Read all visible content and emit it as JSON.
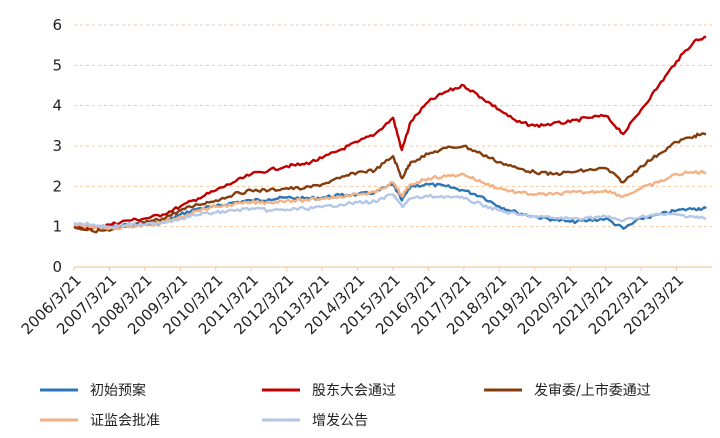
{
  "chart_data": {
    "type": "line",
    "x_tick_labels": [
      "2006/3/21",
      "2007/3/21",
      "2008/3/21",
      "2009/3/21",
      "2010/3/21",
      "2011/3/21",
      "2012/3/21",
      "2013/3/21",
      "2014/3/21",
      "2015/3/21",
      "2016/3/21",
      "2017/3/21",
      "2018/3/21",
      "2019/3/21",
      "2020/3/21",
      "2021/3/21",
      "2022/3/21",
      "2023/3/21"
    ],
    "y_ticks": [
      "0",
      "1",
      "2",
      "3",
      "4",
      "5",
      "6"
    ],
    "ylim": [
      0,
      6
    ],
    "x_range": [
      "2006/3/21",
      "2024/3/21"
    ],
    "grid": "horizontal dashed",
    "legend_position": "bottom",
    "x": [
      "2006/3/21",
      "2006/9/21",
      "2007/3/21",
      "2007/9/21",
      "2008/3/21",
      "2008/9/21",
      "2009/3/21",
      "2009/9/21",
      "2010/3/21",
      "2010/9/21",
      "2011/3/21",
      "2011/9/21",
      "2012/3/21",
      "2012/9/21",
      "2013/3/21",
      "2013/9/21",
      "2014/3/21",
      "2014/9/21",
      "2015/3/21",
      "2015/6/21",
      "2015/9/21",
      "2016/3/21",
      "2016/9/21",
      "2017/3/21",
      "2017/9/21",
      "2018/3/21",
      "2018/9/21",
      "2019/3/21",
      "2019/9/21",
      "2020/3/21",
      "2020/9/21",
      "2021/3/21",
      "2021/9/21",
      "2022/3/21",
      "2022/9/21",
      "2023/3/21",
      "2023/9/21",
      "2024/1/21"
    ],
    "series": [
      {
        "name": "初始预案",
        "color": "#2e75b6",
        "values": [
          1.05,
          1.0,
          1.0,
          1.05,
          1.05,
          1.1,
          1.3,
          1.45,
          1.5,
          1.6,
          1.65,
          1.68,
          1.72,
          1.7,
          1.72,
          1.78,
          1.8,
          1.85,
          2.05,
          1.65,
          2.0,
          2.05,
          2.0,
          1.9,
          1.75,
          1.5,
          1.35,
          1.25,
          1.18,
          1.12,
          1.15,
          1.2,
          0.95,
          1.2,
          1.3,
          1.4,
          1.45,
          1.45
        ]
      },
      {
        "name": "股东大会通过",
        "color": "#c00000",
        "values": [
          1.0,
          0.95,
          1.05,
          1.15,
          1.2,
          1.3,
          1.5,
          1.7,
          1.9,
          2.1,
          2.3,
          2.4,
          2.5,
          2.55,
          2.7,
          2.9,
          3.1,
          3.3,
          3.7,
          2.9,
          3.6,
          4.1,
          4.35,
          4.5,
          4.2,
          3.9,
          3.6,
          3.5,
          3.55,
          3.6,
          3.7,
          3.75,
          3.3,
          3.9,
          4.5,
          5.1,
          5.6,
          5.7
        ]
      },
      {
        "name": "发审委/上市委通过",
        "color": "#843c0c",
        "values": [
          1.0,
          0.9,
          0.9,
          1.0,
          1.1,
          1.2,
          1.4,
          1.55,
          1.65,
          1.8,
          1.9,
          1.9,
          1.95,
          1.95,
          2.05,
          2.2,
          2.35,
          2.4,
          2.75,
          2.2,
          2.6,
          2.8,
          2.95,
          3.0,
          2.8,
          2.6,
          2.45,
          2.35,
          2.3,
          2.35,
          2.4,
          2.45,
          2.1,
          2.5,
          2.8,
          3.1,
          3.25,
          3.3
        ]
      },
      {
        "name": "证监会批准",
        "color": "#f4b183",
        "values": [
          1.05,
          1.0,
          0.95,
          1.0,
          1.05,
          1.1,
          1.25,
          1.4,
          1.5,
          1.55,
          1.6,
          1.6,
          1.65,
          1.65,
          1.7,
          1.75,
          1.8,
          1.85,
          2.1,
          1.75,
          2.05,
          2.2,
          2.25,
          2.3,
          2.1,
          1.95,
          1.85,
          1.8,
          1.8,
          1.85,
          1.85,
          1.9,
          1.75,
          1.95,
          2.1,
          2.3,
          2.35,
          2.35
        ]
      },
      {
        "name": "增发公告",
        "color": "#b4c7e7",
        "values": [
          1.1,
          1.05,
          1.0,
          1.05,
          1.05,
          1.1,
          1.2,
          1.3,
          1.35,
          1.4,
          1.45,
          1.4,
          1.42,
          1.45,
          1.48,
          1.55,
          1.6,
          1.62,
          1.8,
          1.5,
          1.7,
          1.75,
          1.75,
          1.7,
          1.55,
          1.4,
          1.3,
          1.25,
          1.22,
          1.2,
          1.22,
          1.25,
          1.15,
          1.25,
          1.3,
          1.3,
          1.25,
          1.2
        ]
      }
    ]
  }
}
